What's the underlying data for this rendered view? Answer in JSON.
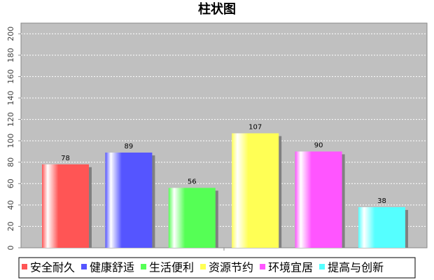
{
  "chart_data": {
    "type": "bar",
    "title": "柱状图",
    "categories": [
      null
    ],
    "series": [
      {
        "name": "安全耐久",
        "color": "#ff5555",
        "values": [
          78
        ]
      },
      {
        "name": "健康舒适",
        "color": "#5555ff",
        "values": [
          89
        ]
      },
      {
        "name": "生活便利",
        "color": "#55ff55",
        "values": [
          56
        ]
      },
      {
        "name": "资源节约",
        "color": "#ffff55",
        "values": [
          107
        ]
      },
      {
        "name": "环境宜居",
        "color": "#ff55ff",
        "values": [
          90
        ]
      },
      {
        "name": "提高与创新",
        "color": "#55ffff",
        "values": [
          38
        ]
      }
    ],
    "ylim": [
      0,
      210
    ],
    "yticks": [
      0,
      20,
      40,
      60,
      80,
      100,
      120,
      140,
      160,
      180,
      200
    ],
    "grid": true
  }
}
